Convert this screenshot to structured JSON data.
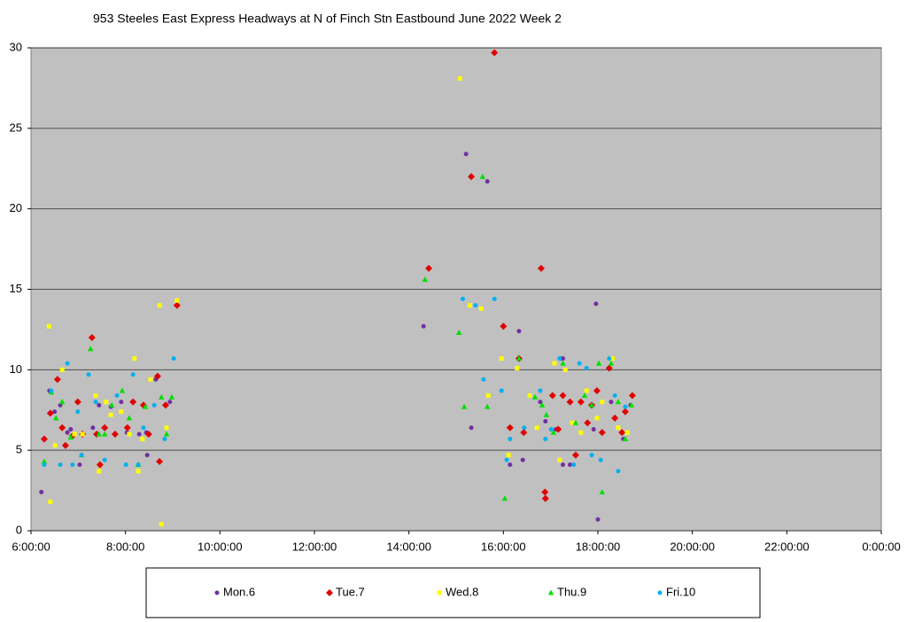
{
  "chart_data": {
    "type": "scatter",
    "title": "953 Steeles East Express Headways at N of Finch Stn Eastbound June 2022  Week 2",
    "xlim": [
      6,
      24
    ],
    "xticks": [
      {
        "value": 6,
        "label": "6:00:00"
      },
      {
        "value": 8,
        "label": "8:00:00"
      },
      {
        "value": 10,
        "label": "10:00:00"
      },
      {
        "value": 12,
        "label": "12:00:00"
      },
      {
        "value": 14,
        "label": "14:00:00"
      },
      {
        "value": 16,
        "label": "16:00:00"
      },
      {
        "value": 18,
        "label": "18:00:00"
      },
      {
        "value": 20,
        "label": "20:00:00"
      },
      {
        "value": 22,
        "label": "22:00:00"
      },
      {
        "value": 24,
        "label": "0:00:00"
      }
    ],
    "ylim": [
      0,
      30
    ],
    "yticks": [
      0,
      5,
      10,
      15,
      20,
      25,
      30
    ],
    "grid": true,
    "legend": "bottom",
    "series": [
      {
        "name": "Mon.6",
        "color": "#7030a0",
        "marker": "circle",
        "x": [
          6.22,
          6.39,
          6.5,
          6.62,
          6.77,
          6.84,
          7.03,
          7.31,
          7.44,
          7.69,
          7.91,
          8.03,
          8.29,
          8.44,
          8.46,
          8.64,
          8.94,
          14.31,
          15.21,
          15.32,
          15.66,
          16.14,
          16.33,
          16.41,
          16.78,
          16.89,
          17.11,
          17.21,
          17.26,
          17.41,
          17.26,
          17.91,
          17.96,
          18.0,
          18.28,
          18.54,
          18.69
        ],
        "values": [
          2.4,
          8.7,
          7.4,
          7.8,
          6.1,
          6.3,
          4.1,
          6.4,
          7.8,
          7.7,
          8.0,
          6.1,
          6.0,
          6.1,
          4.7,
          9.4,
          8.0,
          12.7,
          23.4,
          6.4,
          21.7,
          4.1,
          12.4,
          4.4,
          8.0,
          6.8,
          6.3,
          10.7,
          10.7,
          4.1,
          4.1,
          6.3,
          14.1,
          0.7,
          8.0,
          5.7,
          7.8
        ]
      },
      {
        "name": "Tue.7",
        "color": "#e00000",
        "marker": "diamond",
        "x": [
          6.28,
          6.41,
          6.56,
          6.66,
          6.73,
          6.88,
          6.99,
          7.09,
          7.29,
          7.39,
          7.46,
          7.56,
          7.78,
          8.04,
          8.16,
          8.38,
          8.49,
          8.68,
          8.72,
          8.85,
          9.09,
          14.42,
          15.32,
          15.81,
          16.0,
          16.14,
          16.33,
          16.43,
          16.8,
          16.88,
          16.89,
          17.04,
          17.16,
          17.26,
          17.41,
          17.53,
          17.64,
          17.78,
          17.87,
          17.98,
          18.09,
          18.24,
          18.36,
          18.51,
          18.58,
          18.73
        ],
        "values": [
          5.7,
          7.3,
          9.4,
          6.4,
          5.3,
          5.9,
          8.0,
          6.0,
          12.0,
          6.0,
          4.1,
          6.4,
          6.0,
          6.4,
          8.0,
          7.8,
          6.0,
          9.6,
          4.3,
          7.8,
          14.0,
          16.3,
          22.0,
          29.7,
          12.7,
          6.4,
          10.7,
          6.1,
          16.3,
          2.4,
          2.0,
          8.4,
          6.3,
          8.4,
          8.0,
          4.7,
          8.0,
          6.7,
          7.8,
          8.7,
          6.1,
          10.1,
          7.0,
          6.1,
          7.4,
          8.4
        ]
      },
      {
        "name": "Wed.8",
        "color": "#ffff00",
        "marker": "square",
        "x": [
          6.38,
          6.41,
          6.51,
          6.66,
          6.92,
          7.09,
          7.37,
          7.44,
          7.59,
          7.69,
          7.91,
          8.08,
          8.19,
          8.27,
          8.36,
          8.53,
          8.72,
          8.76,
          8.87,
          9.09,
          15.08,
          15.29,
          15.53,
          15.68,
          15.96,
          16.11,
          16.29,
          16.56,
          16.71,
          17.08,
          17.19,
          17.31,
          17.46,
          17.64,
          17.76,
          17.98,
          18.09,
          18.31,
          18.43,
          18.62
        ],
        "values": [
          12.7,
          1.8,
          5.3,
          10.0,
          6.0,
          6.0,
          8.4,
          3.7,
          8.0,
          7.2,
          7.4,
          6.0,
          10.7,
          3.7,
          5.7,
          9.4,
          14.0,
          0.4,
          6.4,
          14.3,
          28.1,
          14.0,
          13.8,
          8.4,
          10.7,
          4.7,
          10.1,
          8.4,
          6.4,
          10.4,
          4.4,
          10.0,
          6.7,
          6.1,
          8.7,
          7.0,
          8.0,
          10.7,
          6.4,
          6.1
        ]
      },
      {
        "name": "Thu.9",
        "color": "#00e000",
        "marker": "triangle",
        "x": [
          6.28,
          6.43,
          6.53,
          6.66,
          6.84,
          7.07,
          7.26,
          7.44,
          7.56,
          7.71,
          7.93,
          8.08,
          8.27,
          8.42,
          8.76,
          8.87,
          8.98,
          14.34,
          15.06,
          15.17,
          15.56,
          15.66,
          16.03,
          16.33,
          16.67,
          16.82,
          16.91,
          17.06,
          17.26,
          17.53,
          17.72,
          17.87,
          18.02,
          18.09,
          18.28,
          18.43,
          18.58,
          18.71
        ],
        "values": [
          4.3,
          8.6,
          7.0,
          8.0,
          5.8,
          4.7,
          11.3,
          6.0,
          6.0,
          7.8,
          8.7,
          7.0,
          4.1,
          7.7,
          8.3,
          6.0,
          8.3,
          15.6,
          12.3,
          7.7,
          22.0,
          7.7,
          2.0,
          10.7,
          8.3,
          7.8,
          7.2,
          6.1,
          10.4,
          6.7,
          8.4,
          7.8,
          10.4,
          2.4,
          10.4,
          8.0,
          5.7,
          7.8
        ]
      },
      {
        "name": "Fri.10",
        "color": "#00b0f0",
        "marker": "circle",
        "x": [
          6.28,
          6.43,
          6.62,
          6.77,
          6.88,
          6.99,
          7.07,
          7.22,
          7.37,
          7.56,
          7.82,
          8.01,
          8.16,
          8.27,
          8.38,
          8.61,
          8.83,
          9.02,
          15.14,
          15.41,
          15.58,
          15.81,
          15.96,
          16.07,
          16.14,
          16.44,
          16.78,
          16.89,
          17.01,
          17.19,
          17.49,
          17.61,
          17.76,
          17.87,
          18.06,
          18.24,
          18.36,
          18.43,
          18.58
        ],
        "values": [
          4.1,
          8.7,
          4.1,
          10.4,
          4.1,
          7.4,
          4.7,
          9.7,
          8.0,
          4.4,
          8.4,
          4.1,
          9.7,
          4.1,
          6.4,
          7.8,
          5.7,
          10.7,
          14.4,
          14.0,
          9.4,
          14.4,
          8.7,
          4.4,
          5.7,
          6.4,
          8.7,
          5.7,
          6.3,
          10.7,
          4.1,
          10.4,
          10.1,
          4.7,
          4.4,
          10.7,
          8.4,
          3.7,
          7.7
        ]
      }
    ]
  }
}
